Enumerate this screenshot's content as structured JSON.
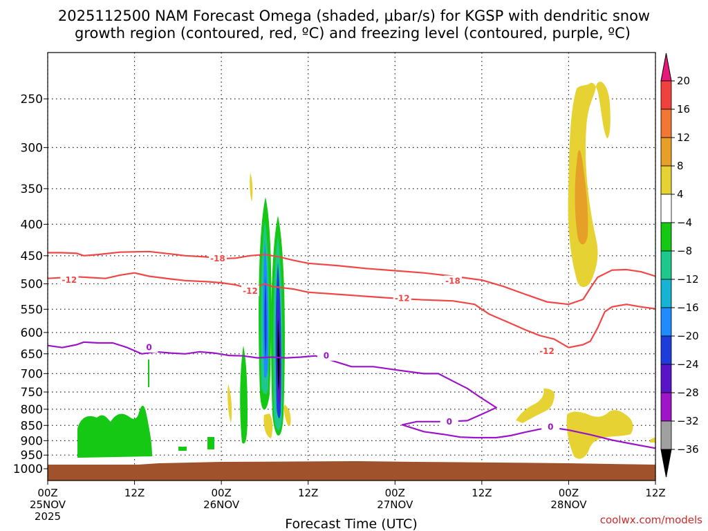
{
  "chart_data": {
    "type": "time-height cross section",
    "title_line1": "2025112500 NAM Forecast Omega (shaded, μbar/s) for KGSP with dendritic snow",
    "title_line2": "growth region (contoured, red, ºC) and freezing level (contoured, purple, ºC)",
    "xlabel": "Forecast Time (UTC)",
    "credit": "coolwx.com/models",
    "y_ticks": [
      "250",
      "300",
      "350",
      "400",
      "450",
      "500",
      "550",
      "600",
      "650",
      "700",
      "750",
      "800",
      "850",
      "900",
      "950",
      "1000"
    ],
    "x_ticks": [
      {
        "hour": 0,
        "line1": "00Z",
        "line2": "25NOV",
        "line3": "2025"
      },
      {
        "hour": 12,
        "line1": "12Z",
        "line2": "",
        "line3": ""
      },
      {
        "hour": 24,
        "line1": "00Z",
        "line2": "26NOV",
        "line3": ""
      },
      {
        "hour": 36,
        "line1": "12Z",
        "line2": "",
        "line3": ""
      },
      {
        "hour": 48,
        "line1": "00Z",
        "line2": "27NOV",
        "line3": ""
      },
      {
        "hour": 60,
        "line1": "12Z",
        "line2": "",
        "line3": ""
      },
      {
        "hour": 72,
        "line1": "00Z",
        "line2": "28NOV",
        "line3": ""
      },
      {
        "hour": 84,
        "line1": "12Z",
        "line2": "",
        "line3": ""
      }
    ],
    "x_range_hours": [
      0,
      84
    ],
    "y_range_hPa": [
      200,
      1030
    ],
    "colorbar": {
      "ticks": [
        "20",
        "16",
        "12",
        "8",
        "4",
        "−4",
        "−8",
        "−12",
        "−16",
        "−20",
        "−24",
        "−28",
        "−32",
        "−36"
      ],
      "colors": [
        "#e8177c",
        "#f0413c",
        "#f07832",
        "#e6a028",
        "#e6d232",
        "#ffffff",
        "#14c814",
        "#1ec88c",
        "#14b4d2",
        "#1e8cff",
        "#1e3cdc",
        "#5a14c8",
        "#a014c8",
        "#a0a0a0",
        "#000000"
      ]
    },
    "contours": [
      {
        "name": "dgz-minus-18",
        "label": "-18",
        "color": "#f04646",
        "points": [
          [
            0,
            445
          ],
          [
            2,
            445
          ],
          [
            4,
            446
          ],
          [
            5,
            450
          ],
          [
            7,
            448
          ],
          [
            10,
            444
          ],
          [
            14,
            443
          ],
          [
            17,
            447
          ],
          [
            19,
            450
          ],
          [
            22,
            452
          ],
          [
            24,
            455
          ],
          [
            26,
            454
          ],
          [
            28,
            450
          ],
          [
            30,
            448
          ],
          [
            32,
            452
          ],
          [
            34,
            458
          ],
          [
            36,
            463
          ],
          [
            40,
            467
          ],
          [
            44,
            472
          ],
          [
            48,
            476
          ],
          [
            52,
            480
          ],
          [
            56,
            486
          ],
          [
            60,
            493
          ],
          [
            63,
            505
          ],
          [
            66,
            520
          ],
          [
            69,
            535
          ],
          [
            72,
            540
          ],
          [
            74,
            530
          ],
          [
            75,
            508
          ],
          [
            76,
            488
          ],
          [
            78,
            475
          ],
          [
            80,
            474
          ],
          [
            82,
            478
          ],
          [
            84,
            486
          ]
        ],
        "label_positions": [
          [
            23.5,
            455
          ],
          [
            56,
            495
          ]
        ]
      },
      {
        "name": "dgz-minus-12",
        "label": "-12",
        "color": "#f04646",
        "points": [
          [
            0,
            490
          ],
          [
            4,
            487
          ],
          [
            8,
            490
          ],
          [
            10,
            484
          ],
          [
            12,
            480
          ],
          [
            14,
            486
          ],
          [
            17,
            491
          ],
          [
            19,
            494
          ],
          [
            22,
            496
          ],
          [
            24,
            498
          ],
          [
            26,
            502
          ],
          [
            28,
            510
          ],
          [
            30,
            500
          ],
          [
            31,
            505
          ],
          [
            34,
            510
          ],
          [
            36,
            516
          ],
          [
            40,
            520
          ],
          [
            44,
            524
          ],
          [
            48,
            528
          ],
          [
            52,
            531
          ],
          [
            56,
            533
          ],
          [
            59,
            540
          ],
          [
            61,
            560
          ],
          [
            64,
            580
          ],
          [
            66,
            594
          ],
          [
            68,
            607
          ],
          [
            70,
            615
          ],
          [
            72,
            635
          ],
          [
            74,
            628
          ],
          [
            75,
            620
          ],
          [
            76,
            590
          ],
          [
            77,
            555
          ],
          [
            78,
            545
          ],
          [
            80,
            540
          ],
          [
            82,
            545
          ],
          [
            84,
            549
          ]
        ],
        "label_positions": [
          [
            3,
            493
          ],
          [
            28,
            514
          ],
          [
            49,
            528
          ],
          [
            69,
            644
          ]
        ]
      },
      {
        "name": "freezing-level-0",
        "label": "0",
        "color": "#9a14c8",
        "points": [
          [
            0,
            630
          ],
          [
            2,
            635
          ],
          [
            4,
            628
          ],
          [
            5,
            622
          ],
          [
            7,
            624
          ],
          [
            9,
            624
          ],
          [
            11,
            635
          ],
          [
            13,
            650
          ],
          [
            15,
            645
          ],
          [
            17,
            648
          ],
          [
            19,
            650
          ],
          [
            21,
            645
          ],
          [
            23,
            648
          ],
          [
            25,
            654
          ],
          [
            27,
            655
          ],
          [
            29,
            660
          ],
          [
            31,
            658
          ],
          [
            33,
            660
          ],
          [
            35,
            658
          ],
          [
            37,
            655
          ],
          [
            39,
            665
          ],
          [
            42,
            682
          ],
          [
            45,
            682
          ],
          [
            48,
            690
          ],
          [
            50,
            695
          ],
          [
            52,
            700
          ],
          [
            54,
            700
          ],
          [
            56,
            720
          ],
          [
            58,
            740
          ],
          [
            60,
            768
          ],
          [
            62,
            795
          ],
          [
            60,
            815
          ],
          [
            58,
            835
          ],
          [
            55,
            838
          ],
          [
            51,
            838
          ],
          [
            49,
            848
          ],
          [
            52,
            870
          ],
          [
            55,
            880
          ],
          [
            57,
            888
          ],
          [
            59,
            890
          ],
          [
            62,
            890
          ],
          [
            64,
            883
          ],
          [
            66,
            872
          ],
          [
            68,
            862
          ],
          [
            70,
            858
          ],
          [
            72,
            865
          ],
          [
            75,
            880
          ],
          [
            78,
            898
          ],
          [
            81,
            912
          ],
          [
            84,
            926
          ]
        ],
        "label_positions": [
          [
            14,
            635
          ],
          [
            38.5,
            655
          ],
          [
            55.5,
            838
          ],
          [
            69.5,
            855
          ]
        ]
      }
    ]
  }
}
